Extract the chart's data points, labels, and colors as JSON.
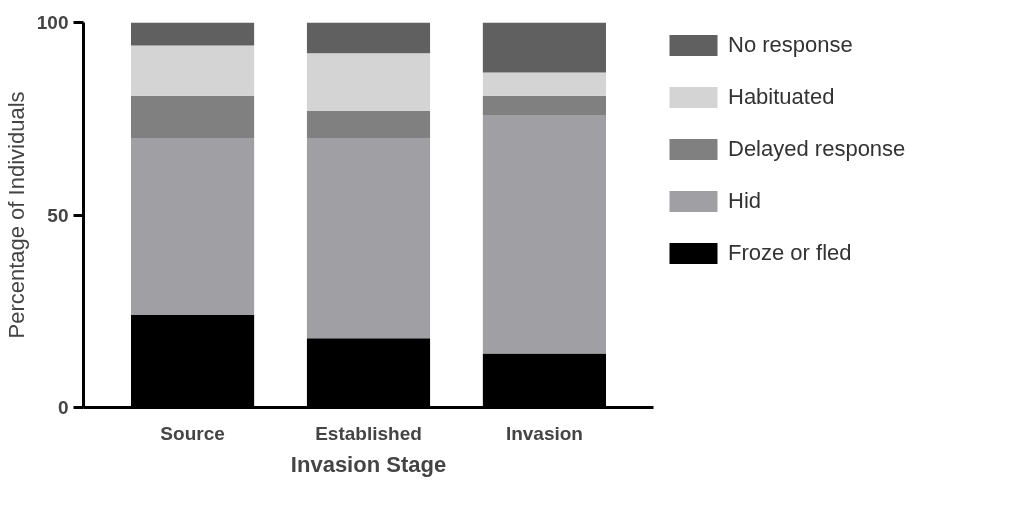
{
  "chart_data": {
    "type": "bar",
    "stacked": true,
    "xlabel": "Invasion Stage",
    "ylabel": "Percentage of Individuals",
    "categories": [
      "Source",
      "Established",
      "Invasion"
    ],
    "series": [
      {
        "name": "Froze or fled",
        "color": "#000000",
        "values": [
          24,
          18,
          14
        ]
      },
      {
        "name": "Hid",
        "color": "#a0a0a4",
        "values": [
          46,
          52,
          62
        ]
      },
      {
        "name": "Delayed response",
        "color": "#808080",
        "values": [
          11,
          7,
          5
        ]
      },
      {
        "name": "Habituated",
        "color": "#d4d4d4",
        "values": [
          13,
          15,
          6
        ]
      },
      {
        "name": "No response",
        "color": "#606060",
        "values": [
          6,
          8,
          13
        ]
      }
    ],
    "ylim": [
      0,
      100
    ],
    "yticks": [
      0,
      50,
      100
    ],
    "grid": false,
    "legend": "right"
  }
}
